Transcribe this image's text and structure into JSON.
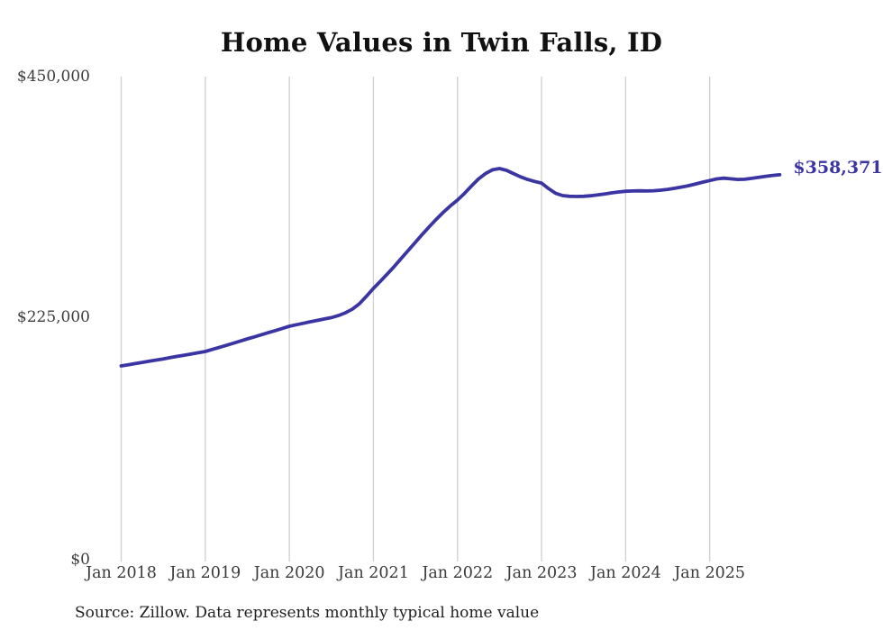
{
  "title": "Home Values in Twin Falls, ID",
  "source_note": "Source: Zillow. Data represents monthly typical home value",
  "colors": {
    "line": "#3b34a3",
    "annotation_text": "#3b34a3",
    "grid": "#cfcfcf",
    "title_text": "#111111",
    "axis_text": "#3a3a3a",
    "source_text": "#1f1f1f",
    "background": "#ffffff"
  },
  "chart_data": {
    "type": "line",
    "title": "Home Values in Twin Falls, ID",
    "xlabel": "",
    "ylabel": "",
    "ylim": [
      0,
      450000
    ],
    "y_ticks": [
      450000,
      225000,
      0
    ],
    "y_tick_labels": [
      "$450,000",
      "$225,000",
      "$0"
    ],
    "x_tick_labels": [
      "Jan 2018",
      "Jan 2019",
      "Jan 2020",
      "Jan 2021",
      "Jan 2022",
      "Jan 2023",
      "Jan 2024",
      "Jan 2025"
    ],
    "grid": "vertical-only",
    "legend": "none",
    "annotation": "$358,371",
    "final_value": 358371,
    "series": [
      {
        "name": "Monthly typical home value",
        "x_start": "2018-01",
        "frequency": "monthly",
        "values": [
          180000,
          181100,
          182200,
          183300,
          184400,
          185500,
          186600,
          187700,
          188900,
          190000,
          191100,
          192300,
          193500,
          195400,
          197300,
          199200,
          201200,
          203200,
          205200,
          207100,
          209100,
          211000,
          213000,
          215000,
          217000,
          218400,
          219800,
          221200,
          222500,
          223800,
          225100,
          227000,
          229500,
          233000,
          238000,
          245000,
          252300,
          259000,
          266000,
          273000,
          280500,
          288000,
          295500,
          303000,
          310000,
          317000,
          323500,
          329500,
          334800,
          341000,
          348000,
          354500,
          359500,
          363000,
          364200,
          362500,
          359500,
          356500,
          354000,
          352200,
          350700,
          345500,
          341200,
          339000,
          338300,
          338100,
          338300,
          338800,
          339600,
          340500,
          341500,
          342300,
          343000,
          343300,
          343400,
          343300,
          343500,
          344000,
          344800,
          345800,
          347000,
          348200,
          349800,
          351500,
          353000,
          354500,
          355200,
          354600,
          354000,
          354200,
          355000,
          356000,
          357000,
          357800,
          358371
        ]
      }
    ]
  }
}
